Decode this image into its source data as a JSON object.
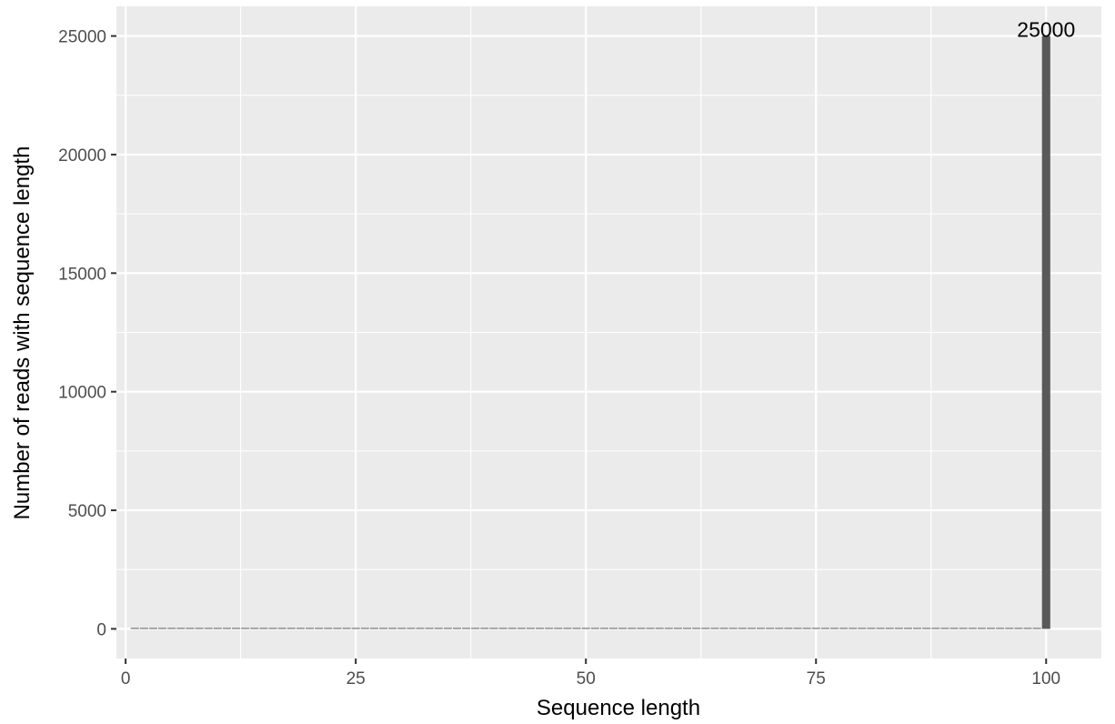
{
  "chart_data": {
    "type": "bar",
    "title": "",
    "xlabel": "Sequence length",
    "ylabel": "Number of reads with sequence length",
    "xlim": [
      -1,
      106
    ],
    "ylim": [
      -1250,
      26250
    ],
    "x_ticks": [
      0,
      25,
      50,
      75,
      100
    ],
    "y_ticks": [
      0,
      5000,
      10000,
      15000,
      20000,
      25000
    ],
    "x_tick_labels": [
      "0",
      "25",
      "50",
      "75",
      "100"
    ],
    "y_tick_labels": [
      "0",
      "5000",
      "10000",
      "15000",
      "20000",
      "25000"
    ],
    "grid": true,
    "legend": "none",
    "x": [
      1,
      2,
      3,
      4,
      5,
      6,
      7,
      8,
      9,
      10,
      11,
      12,
      13,
      14,
      15,
      16,
      17,
      18,
      19,
      20,
      21,
      22,
      23,
      24,
      25,
      26,
      27,
      28,
      29,
      30,
      31,
      32,
      33,
      34,
      35,
      36,
      37,
      38,
      39,
      40,
      41,
      42,
      43,
      44,
      45,
      46,
      47,
      48,
      49,
      50,
      51,
      52,
      53,
      54,
      55,
      56,
      57,
      58,
      59,
      60,
      61,
      62,
      63,
      64,
      65,
      66,
      67,
      68,
      69,
      70,
      71,
      72,
      73,
      74,
      75,
      76,
      77,
      78,
      79,
      80,
      81,
      82,
      83,
      84,
      85,
      86,
      87,
      88,
      89,
      90,
      91,
      92,
      93,
      94,
      95,
      96,
      97,
      98,
      99,
      100
    ],
    "values": [
      0,
      0,
      0,
      0,
      0,
      0,
      0,
      0,
      0,
      0,
      0,
      0,
      0,
      0,
      0,
      0,
      0,
      0,
      0,
      0,
      0,
      0,
      0,
      0,
      0,
      0,
      0,
      0,
      0,
      0,
      0,
      0,
      0,
      0,
      0,
      0,
      0,
      0,
      0,
      0,
      0,
      0,
      0,
      0,
      0,
      0,
      0,
      0,
      0,
      0,
      0,
      0,
      0,
      0,
      0,
      0,
      0,
      0,
      0,
      0,
      0,
      0,
      0,
      0,
      0,
      0,
      0,
      0,
      0,
      0,
      0,
      0,
      0,
      0,
      0,
      0,
      0,
      0,
      0,
      0,
      0,
      0,
      0,
      0,
      0,
      0,
      0,
      0,
      0,
      0,
      0,
      0,
      0,
      0,
      0,
      0,
      0,
      0,
      0,
      25000
    ],
    "data_labels": [
      {
        "x": 100,
        "value": 25000,
        "text": "25000"
      }
    ],
    "colors": {
      "bar": "#595959",
      "panel_background": "#ebebeb",
      "grid": "#ffffff",
      "tick_mark": "#333333"
    }
  }
}
